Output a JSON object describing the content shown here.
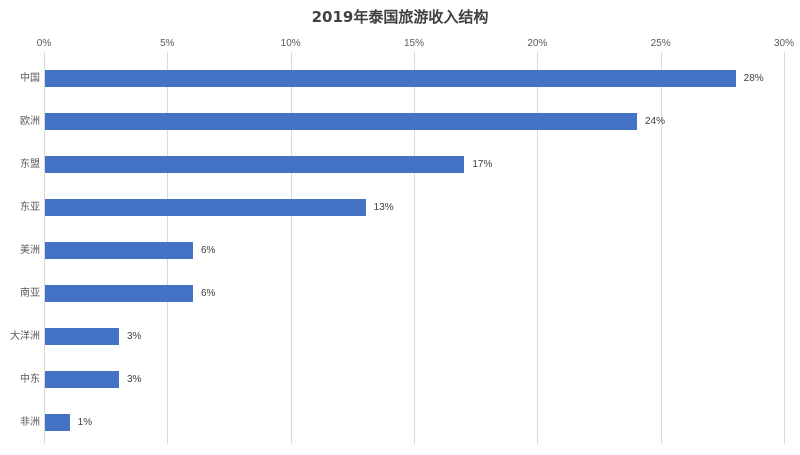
{
  "chart_data": {
    "type": "bar",
    "orientation": "horizontal",
    "title": "2019年泰国旅游收入结构",
    "xlabel": "",
    "ylabel": "",
    "xlim": [
      0,
      30
    ],
    "x_ticks": [
      "0%",
      "5%",
      "10%",
      "15%",
      "20%",
      "25%",
      "30%"
    ],
    "x_axis_position": "top",
    "grid": true,
    "legend": null,
    "bar_color": "#4472c4",
    "categories": [
      "中国",
      "欧洲",
      "东盟",
      "东亚",
      "美洲",
      "南亚",
      "大洋洲",
      "中东",
      "非洲"
    ],
    "values": [
      28,
      24,
      17,
      13,
      6,
      6,
      3,
      3,
      1
    ],
    "data_labels": [
      "28%",
      "24%",
      "17%",
      "13%",
      "6%",
      "6%",
      "3%",
      "3%",
      "1%"
    ]
  }
}
